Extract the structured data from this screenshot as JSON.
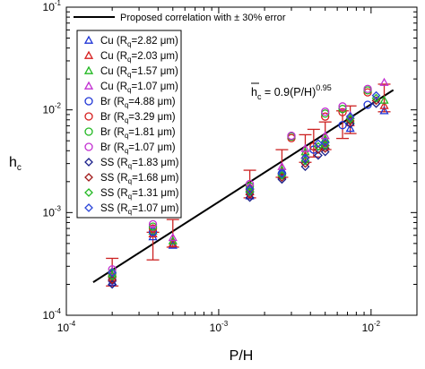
{
  "chart_data": {
    "type": "scatter",
    "xlabel": "P/H",
    "ylabel": "h",
    "ylabel_sub": "c",
    "xscale": "log",
    "yscale": "log",
    "xlim": [
      0.0001,
      0.02
    ],
    "ylim": [
      0.0001,
      0.1
    ],
    "grid": false,
    "x_ticks": [
      {
        "value": 0.0001,
        "base": "10",
        "exp": "-4"
      },
      {
        "value": 0.001,
        "base": "10",
        "exp": "-3"
      },
      {
        "value": 0.01,
        "base": "10",
        "exp": "-2"
      }
    ],
    "y_ticks": [
      {
        "value": 0.0001,
        "base": "10",
        "exp": "-4"
      },
      {
        "value": 0.001,
        "base": "10",
        "exp": "-3"
      },
      {
        "value": 0.01,
        "base": "10",
        "exp": "-2"
      },
      {
        "value": 0.1,
        "base": "10",
        "exp": "-1"
      }
    ],
    "line_legend": "Proposed correlation with ± 30%  error",
    "fit": {
      "coef": 0.9,
      "exponent": 0.95,
      "x_range": [
        0.00015,
        0.014
      ],
      "error_fraction": 0.3,
      "annotation": {
        "lhs": "h",
        "lhs_sub": "c",
        "rhs": " = 0.9(P/H)",
        "sup": "0.95"
      }
    },
    "error_bar_x": [
      0.0002,
      0.00037,
      0.0005,
      0.0016,
      0.0026,
      0.0037,
      0.0042,
      0.005,
      0.0065,
      0.0073,
      0.0122
    ],
    "series": [
      {
        "name": "Cu (R",
        "sub": "q",
        "rest": "=2.82 μm)",
        "marker": "triangle",
        "color": "#1f35d6",
        "x": [
          0.0002,
          0.00037,
          0.0005,
          0.0016,
          0.0026,
          0.0037,
          0.005,
          0.0073,
          0.0122
        ],
        "y": [
          0.00021,
          0.00058,
          0.00048,
          0.00145,
          0.0023,
          0.0033,
          0.0045,
          0.0066,
          0.0098
        ]
      },
      {
        "name": "Cu (R",
        "sub": "q",
        "rest": "=2.03 μm)",
        "marker": "triangle",
        "color": "#d61f1f",
        "x": [
          0.0002,
          0.00037,
          0.0005,
          0.0016,
          0.0026,
          0.0037,
          0.005,
          0.0073,
          0.0122
        ],
        "y": [
          0.00023,
          0.00062,
          0.0005,
          0.0016,
          0.0025,
          0.0036,
          0.0048,
          0.0075,
          0.011
        ]
      },
      {
        "name": "Cu (R",
        "sub": "q",
        "rest": "=1.57 μm)",
        "marker": "triangle",
        "color": "#22b822",
        "x": [
          0.0002,
          0.00037,
          0.0005,
          0.0016,
          0.0026,
          0.0037,
          0.005,
          0.0073,
          0.0122
        ],
        "y": [
          0.00025,
          0.00066,
          0.00053,
          0.0017,
          0.0026,
          0.0039,
          0.0052,
          0.008,
          0.0124
        ]
      },
      {
        "name": "Cu (R",
        "sub": "q",
        "rest": "=1.07 μm)",
        "marker": "triangle",
        "color": "#c22fd1",
        "x": [
          0.0002,
          0.00037,
          0.0005,
          0.0016,
          0.0026,
          0.0037,
          0.005,
          0.0073,
          0.0122
        ],
        "y": [
          0.00027,
          0.0007,
          0.00057,
          0.0018,
          0.0028,
          0.0042,
          0.0056,
          0.0088,
          0.0185
        ]
      },
      {
        "name": "Br (R",
        "sub": "q",
        "rest": "=4.88 μm)",
        "marker": "circle",
        "color": "#1f35d6",
        "x": [
          0.0002,
          0.00037,
          0.0016,
          0.0026,
          0.0042,
          0.0065,
          0.0095
        ],
        "y": [
          0.00022,
          0.00065,
          0.0016,
          0.0024,
          0.0041,
          0.0071,
          0.0112
        ]
      },
      {
        "name": "Br (R",
        "sub": "q",
        "rest": "=3.29 μm)",
        "marker": "circle",
        "color": "#d61f1f",
        "x": [
          0.0002,
          0.00037,
          0.0016,
          0.003,
          0.0042,
          0.005,
          0.0065,
          0.0095
        ],
        "y": [
          0.00024,
          0.0007,
          0.0017,
          0.0053,
          0.0044,
          0.0086,
          0.0095,
          0.0148
        ]
      },
      {
        "name": "Br (R",
        "sub": "q",
        "rest": "=1.81 μm)",
        "marker": "circle",
        "color": "#22b822",
        "x": [
          0.0002,
          0.00037,
          0.0016,
          0.003,
          0.005,
          0.0065,
          0.0095
        ],
        "y": [
          0.00026,
          0.00073,
          0.0018,
          0.0055,
          0.0092,
          0.0102,
          0.0155
        ]
      },
      {
        "name": "Br (R",
        "sub": "q",
        "rest": "=1.07 μm)",
        "marker": "circle",
        "color": "#c22fd1",
        "x": [
          0.0002,
          0.00037,
          0.0016,
          0.003,
          0.005,
          0.0065,
          0.0095
        ],
        "y": [
          0.00028,
          0.00077,
          0.0019,
          0.0056,
          0.0096,
          0.0108,
          0.016
        ]
      },
      {
        "name": "SS (R",
        "sub": "q",
        "rest": "=1.83 μm)",
        "marker": "diamond",
        "color": "#1a1f8a",
        "x": [
          0.0002,
          0.0016,
          0.0026,
          0.0037,
          0.0045,
          0.005,
          0.0073,
          0.0108
        ],
        "y": [
          0.0002,
          0.0014,
          0.0021,
          0.0028,
          0.0036,
          0.0039,
          0.0073,
          0.0115
        ]
      },
      {
        "name": "SS (R",
        "sub": "q",
        "rest": "=1.68 μm)",
        "marker": "diamond",
        "color": "#a01a1a",
        "x": [
          0.0002,
          0.0016,
          0.0026,
          0.0037,
          0.0045,
          0.005,
          0.0073,
          0.0108
        ],
        "y": [
          0.00022,
          0.0015,
          0.0022,
          0.003,
          0.0041,
          0.0042,
          0.0078,
          0.0123
        ]
      },
      {
        "name": "SS (R",
        "sub": "q",
        "rest": "=1.31 μm)",
        "marker": "diamond",
        "color": "#22b822",
        "x": [
          0.0002,
          0.0016,
          0.0026,
          0.0037,
          0.0045,
          0.005,
          0.0073,
          0.0108
        ],
        "y": [
          0.00024,
          0.0016,
          0.0023,
          0.0032,
          0.0044,
          0.0045,
          0.0082,
          0.013
        ]
      },
      {
        "name": "SS (R",
        "sub": "q",
        "rest": "=1.07 μm)",
        "marker": "diamond",
        "color": "#2b45d8",
        "x": [
          0.0002,
          0.0016,
          0.0026,
          0.0037,
          0.0045,
          0.005,
          0.0073,
          0.0108
        ],
        "y": [
          0.00026,
          0.0017,
          0.0024,
          0.0034,
          0.0047,
          0.0048,
          0.0086,
          0.0138
        ]
      }
    ]
  }
}
